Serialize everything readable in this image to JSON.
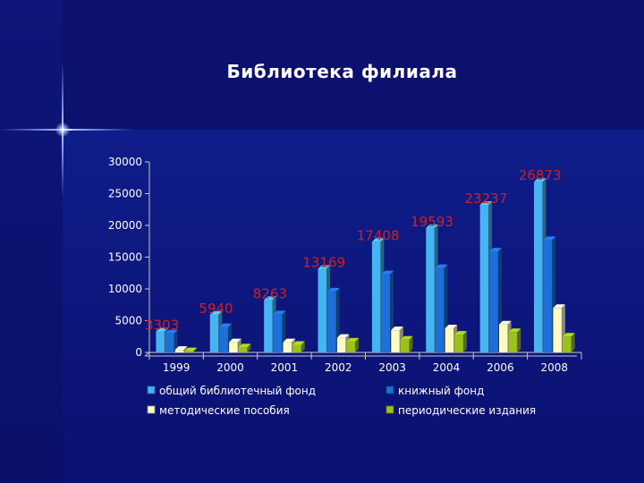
{
  "slide": {
    "title": "Библиотека филиала"
  },
  "colors": {
    "series": [
      "#45b4f0",
      "#1f6fd8",
      "#fdfbc4",
      "#9bc21a"
    ],
    "value_label": "#cc2222",
    "axis_text": "#ffffff"
  },
  "chart_data": {
    "type": "bar",
    "categories": [
      "1999",
      "2000",
      "2001",
      "2002",
      "2003",
      "2004",
      "2006",
      "2008"
    ],
    "ylim": [
      0,
      30000
    ],
    "yticks": [
      "0",
      "5000",
      "10000",
      "15000",
      "20000",
      "25000",
      "30000"
    ],
    "grid": false,
    "legend_position": "bottom",
    "series": [
      {
        "name": "общий библиотечный фонд",
        "values": [
          3303,
          5940,
          8263,
          13169,
          17408,
          19593,
          23237,
          26873
        ]
      },
      {
        "name": "книжный фонд",
        "values": [
          3000,
          4000,
          6000,
          9600,
          12300,
          13300,
          15900,
          17700
        ]
      },
      {
        "name": "методические пособия",
        "values": [
          400,
          1600,
          1600,
          2300,
          3500,
          3800,
          4400,
          7000
        ]
      },
      {
        "name": "периодические издания",
        "values": [
          200,
          800,
          1200,
          1700,
          2000,
          2800,
          3200,
          2500
        ]
      }
    ],
    "data_labels": [
      "3303",
      "5940",
      "8263",
      "13169",
      "17408",
      "19593",
      "23237",
      "26873"
    ]
  }
}
